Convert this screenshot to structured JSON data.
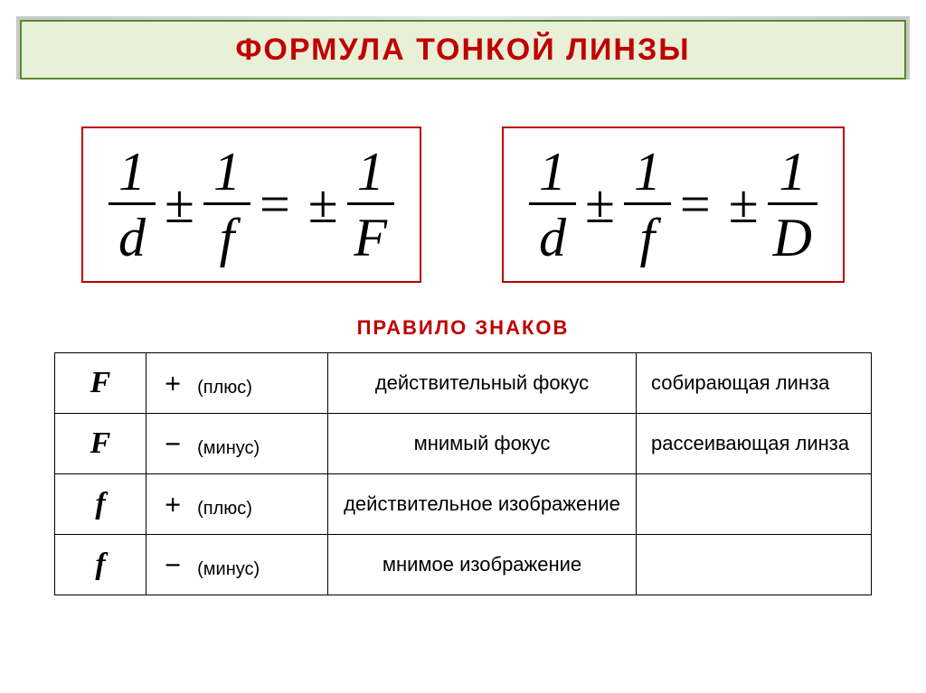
{
  "title": "ФОРМУЛА  ТОНКОЙ  ЛИНЗЫ",
  "subtitle": "ПРАВИЛО   ЗНАКОВ",
  "formulas": {
    "left": {
      "numerators": [
        "1",
        "1",
        "1"
      ],
      "denominators": [
        "d",
        "f",
        "F"
      ],
      "op1": "±",
      "eq": "=",
      "op2": "±"
    },
    "right": {
      "numerators": [
        "1",
        "1",
        "1"
      ],
      "denominators": [
        "d",
        "f",
        "D"
      ],
      "op1": "±",
      "eq": "=",
      "op2": "±"
    }
  },
  "rules": [
    {
      "symbol": "F",
      "sign": "+",
      "sign_label": "(плюс)",
      "desc": "действительный фокус",
      "note": "собирающая линза"
    },
    {
      "symbol": "F",
      "sign": "−",
      "sign_label": "(минус)",
      "desc": "мнимый фокус",
      "note": "рассеивающая линза"
    },
    {
      "symbol": "f",
      "sign": "+",
      "sign_label": "(плюс)",
      "desc": "действительное изображение",
      "note": ""
    },
    {
      "symbol": "f",
      "sign": "−",
      "sign_label": "(минус)",
      "desc": "мнимое изображение",
      "note": ""
    }
  ],
  "colors": {
    "accent_red": "#c00000",
    "accent_green": "#5a8a2a",
    "title_bg": "#e8f0d8"
  }
}
